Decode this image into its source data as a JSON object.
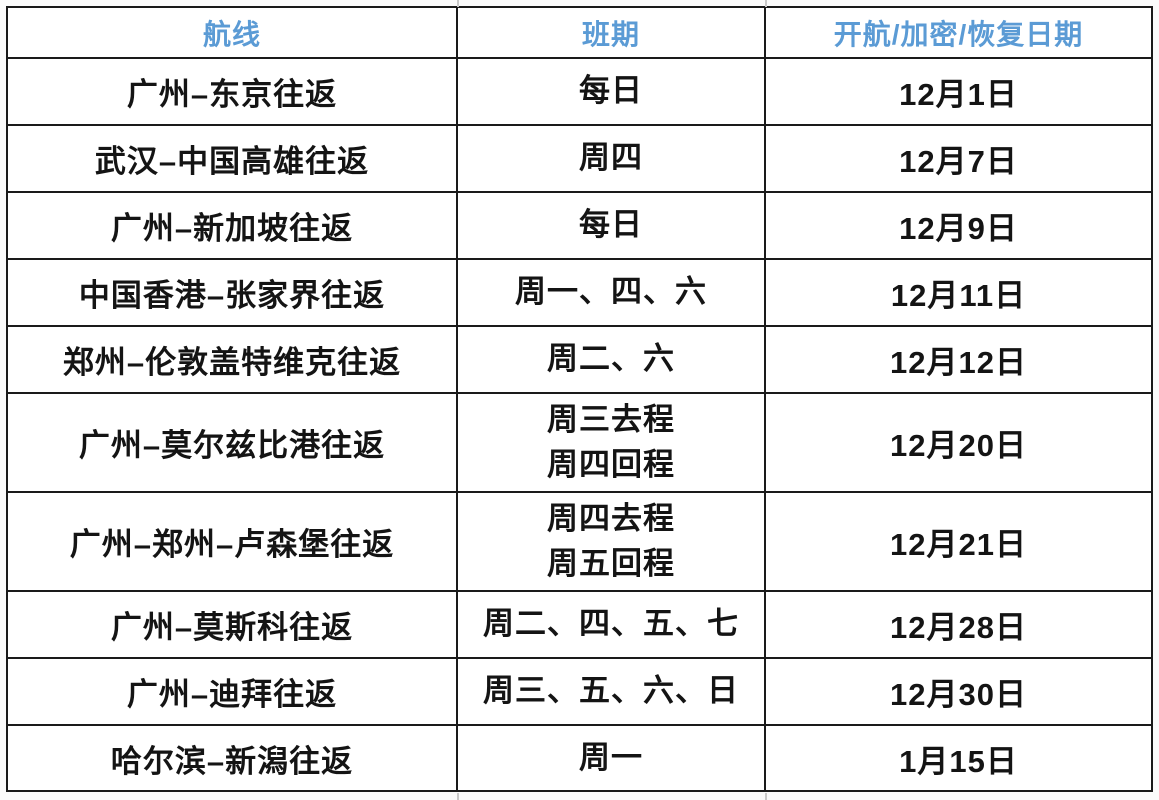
{
  "table": {
    "headers": [
      "航线",
      "班期",
      "开航/加密/恢复日期"
    ],
    "rows": [
      {
        "route": "广州–东京往返",
        "schedule": "每日",
        "date": "12月1日"
      },
      {
        "route": "武汉–中国高雄往返",
        "schedule": "周四",
        "date": "12月7日"
      },
      {
        "route": "广州–新加坡往返",
        "schedule": "每日",
        "date": "12月9日"
      },
      {
        "route": "中国香港–张家界往返",
        "schedule": "周一、四、六",
        "date": "12月11日"
      },
      {
        "route": "郑州–伦敦盖特维克往返",
        "schedule": "周二、六",
        "date": "12月12日"
      },
      {
        "route": "广州–莫尔兹比港往返",
        "schedule": "周三去程\n周四回程",
        "date": "12月20日"
      },
      {
        "route": "广州–郑州–卢森堡往返",
        "schedule": "周四去程\n周五回程",
        "date": "12月21日"
      },
      {
        "route": "广州–莫斯科往返",
        "schedule": "周二、四、五、七",
        "date": "12月28日"
      },
      {
        "route": "广州–迪拜往返",
        "schedule": "周三、五、六、日",
        "date": "12月30日"
      },
      {
        "route": "哈尔滨–新潟往返",
        "schedule": "周一",
        "date": "1月15日"
      }
    ],
    "colors": {
      "header_text": "#5b9bd5",
      "border": "#1a1a1a",
      "cell_text": "#141414",
      "background": "#ffffff"
    }
  }
}
